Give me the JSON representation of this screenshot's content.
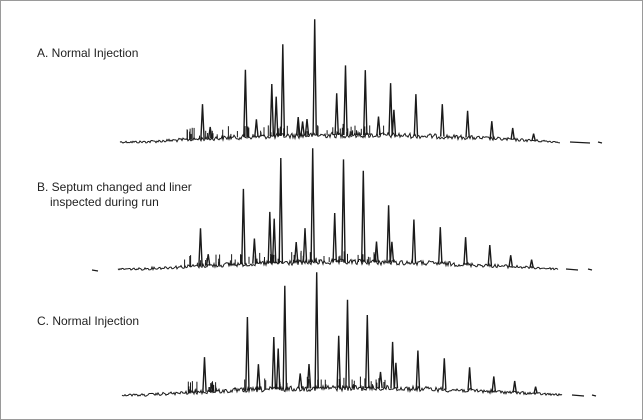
{
  "chart_data": [
    {
      "type": "line",
      "title": "A. Normal Injection",
      "title_lines": [
        "A. Normal Injection"
      ],
      "xlabel": "",
      "ylabel": "",
      "grid": false,
      "peaks": [
        {
          "x": 0.1875,
          "h": 0.3
        },
        {
          "x": 0.205,
          "h": 0.1
        },
        {
          "x": 0.285,
          "h": 0.58
        },
        {
          "x": 0.31,
          "h": 0.15
        },
        {
          "x": 0.345,
          "h": 0.45
        },
        {
          "x": 0.355,
          "h": 0.34
        },
        {
          "x": 0.37,
          "h": 0.79
        },
        {
          "x": 0.405,
          "h": 0.16
        },
        {
          "x": 0.415,
          "h": 0.12
        },
        {
          "x": 0.425,
          "h": 0.14
        },
        {
          "x": 0.4425,
          "h": 1.0
        },
        {
          "x": 0.4925,
          "h": 0.36
        },
        {
          "x": 0.5125,
          "h": 0.6
        },
        {
          "x": 0.5575,
          "h": 0.56
        },
        {
          "x": 0.5875,
          "h": 0.16
        },
        {
          "x": 0.615,
          "h": 0.45
        },
        {
          "x": 0.6225,
          "h": 0.22
        },
        {
          "x": 0.6725,
          "h": 0.36
        },
        {
          "x": 0.7325,
          "h": 0.28
        },
        {
          "x": 0.79,
          "h": 0.23
        },
        {
          "x": 0.845,
          "h": 0.15
        },
        {
          "x": 0.8925,
          "h": 0.1
        },
        {
          "x": 0.94,
          "h": 0.06
        }
      ]
    },
    {
      "type": "line",
      "title": "B. Septum changed and liner inspected during run",
      "title_lines": [
        "B. Septum changed and liner",
        "inspected during run"
      ],
      "xlabel": "",
      "ylabel": "",
      "grid": false,
      "peaks": [
        {
          "x": 0.1875,
          "h": 0.33
        },
        {
          "x": 0.205,
          "h": 0.1
        },
        {
          "x": 0.285,
          "h": 0.66
        },
        {
          "x": 0.31,
          "h": 0.22
        },
        {
          "x": 0.345,
          "h": 0.45
        },
        {
          "x": 0.355,
          "h": 0.39
        },
        {
          "x": 0.37,
          "h": 0.92
        },
        {
          "x": 0.405,
          "h": 0.18
        },
        {
          "x": 0.425,
          "h": 0.3
        },
        {
          "x": 0.4425,
          "h": 1.0
        },
        {
          "x": 0.4925,
          "h": 0.43
        },
        {
          "x": 0.5125,
          "h": 0.9
        },
        {
          "x": 0.5575,
          "h": 0.8
        },
        {
          "x": 0.5875,
          "h": 0.18
        },
        {
          "x": 0.615,
          "h": 0.5
        },
        {
          "x": 0.6225,
          "h": 0.18
        },
        {
          "x": 0.6725,
          "h": 0.38
        },
        {
          "x": 0.7325,
          "h": 0.32
        },
        {
          "x": 0.79,
          "h": 0.24
        },
        {
          "x": 0.845,
          "h": 0.18
        },
        {
          "x": 0.8925,
          "h": 0.1
        },
        {
          "x": 0.94,
          "h": 0.07
        }
      ]
    },
    {
      "type": "line",
      "title": "C. Normal Injection",
      "title_lines": [
        "C. Normal Injection"
      ],
      "xlabel": "",
      "ylabel": "",
      "grid": false,
      "peaks": [
        {
          "x": 0.1875,
          "h": 0.3
        },
        {
          "x": 0.205,
          "h": 0.08
        },
        {
          "x": 0.285,
          "h": 0.63
        },
        {
          "x": 0.31,
          "h": 0.22
        },
        {
          "x": 0.345,
          "h": 0.45
        },
        {
          "x": 0.355,
          "h": 0.35
        },
        {
          "x": 0.37,
          "h": 0.89
        },
        {
          "x": 0.405,
          "h": 0.13
        },
        {
          "x": 0.425,
          "h": 0.21
        },
        {
          "x": 0.4425,
          "h": 1.0
        },
        {
          "x": 0.4925,
          "h": 0.45
        },
        {
          "x": 0.5125,
          "h": 0.76
        },
        {
          "x": 0.5575,
          "h": 0.63
        },
        {
          "x": 0.5875,
          "h": 0.14
        },
        {
          "x": 0.615,
          "h": 0.4
        },
        {
          "x": 0.6225,
          "h": 0.22
        },
        {
          "x": 0.6725,
          "h": 0.33
        },
        {
          "x": 0.7325,
          "h": 0.27
        },
        {
          "x": 0.79,
          "h": 0.2
        },
        {
          "x": 0.845,
          "h": 0.13
        },
        {
          "x": 0.8925,
          "h": 0.1
        },
        {
          "x": 0.94,
          "h": 0.06
        }
      ]
    }
  ],
  "colors": {
    "trace": "#1a1a1a",
    "frame": "#9a9a9a",
    "label": "#222222"
  }
}
